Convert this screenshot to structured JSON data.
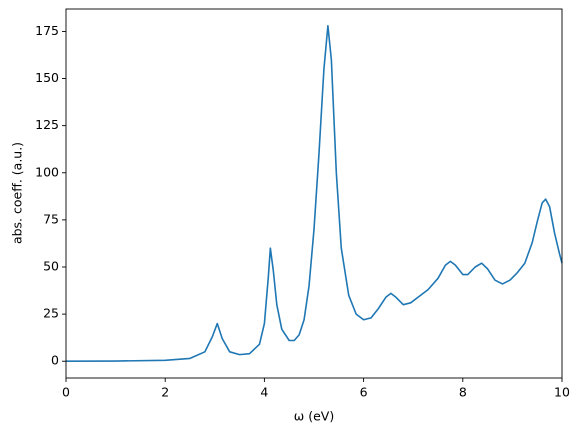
{
  "chart_data": {
    "type": "line",
    "xlabel": "ω (eV)",
    "ylabel": "abs. coeff. (a.u.)",
    "x": [
      0,
      1,
      2,
      2.5,
      2.8,
      2.95,
      3.05,
      3.15,
      3.3,
      3.5,
      3.7,
      3.9,
      4.0,
      4.08,
      4.12,
      4.18,
      4.25,
      4.35,
      4.5,
      4.6,
      4.7,
      4.8,
      4.9,
      5.0,
      5.1,
      5.2,
      5.28,
      5.35,
      5.45,
      5.55,
      5.7,
      5.85,
      6.0,
      6.15,
      6.3,
      6.45,
      6.55,
      6.65,
      6.8,
      6.95,
      7.1,
      7.3,
      7.5,
      7.65,
      7.75,
      7.85,
      8.0,
      8.1,
      8.25,
      8.38,
      8.5,
      8.65,
      8.8,
      8.95,
      9.1,
      9.25,
      9.4,
      9.5,
      9.6,
      9.67,
      9.75,
      9.85,
      9.95,
      10.0
    ],
    "values": [
      0,
      0.1,
      0.5,
      1.5,
      5,
      13,
      20,
      12,
      5,
      3.5,
      4,
      9,
      20,
      45,
      60,
      48,
      30,
      17,
      11,
      11,
      14,
      22,
      40,
      70,
      110,
      155,
      178,
      160,
      100,
      60,
      35,
      25,
      22,
      23,
      28,
      34,
      36,
      34,
      30,
      31,
      34,
      38,
      44,
      51,
      53,
      51,
      46,
      46,
      50,
      52,
      49,
      43,
      41,
      43,
      47,
      52,
      63,
      74,
      84,
      86,
      82,
      68,
      57,
      52
    ],
    "color": "#1f77b4",
    "xlim": [
      0,
      10
    ],
    "xticks": [
      0,
      2,
      4,
      6,
      8,
      10
    ],
    "ylim": [
      -8.9,
      186.9
    ],
    "yticks": [
      0,
      25,
      50,
      75,
      100,
      125,
      150,
      175
    ]
  }
}
